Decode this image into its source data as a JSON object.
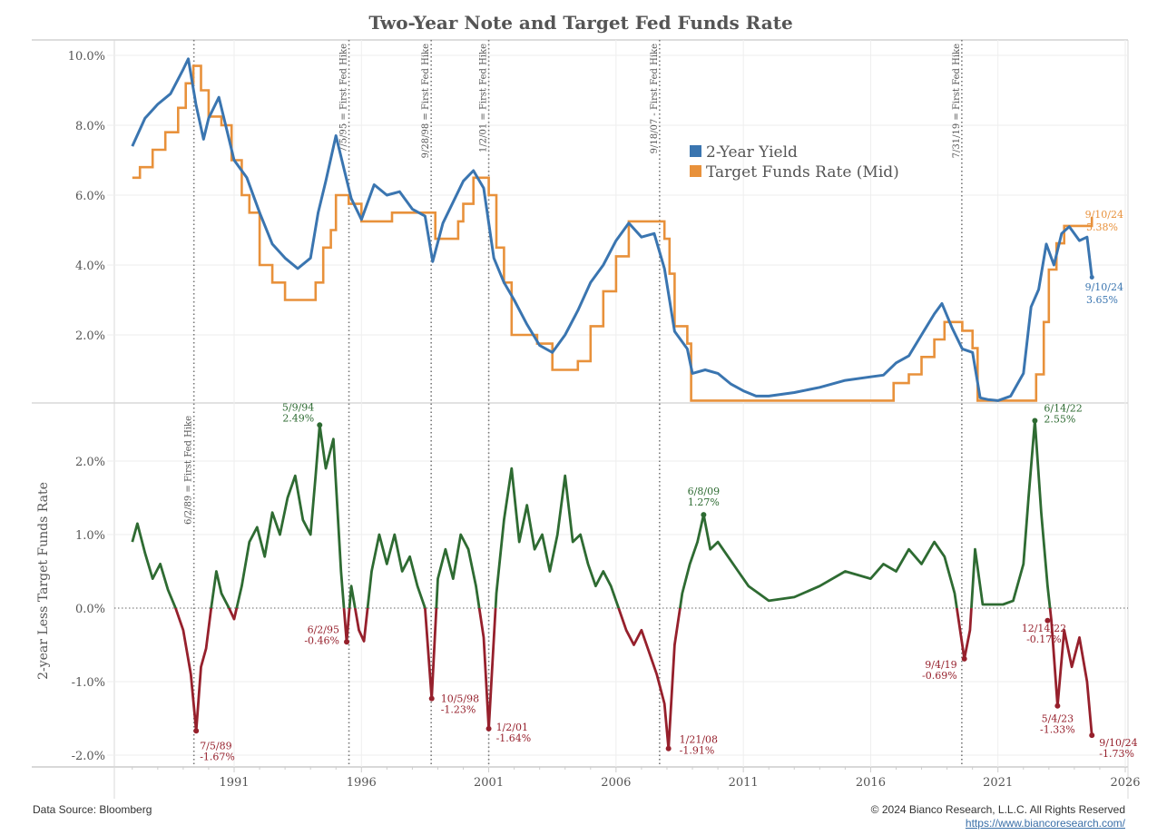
{
  "chart_data": [
    {
      "type": "line",
      "title": "Two-Year Note and Target Fed Funds Rate",
      "xlabel": "",
      "ylabel": "",
      "xlim": [
        1987,
        2026.5
      ],
      "ylim": [
        0,
        10.2
      ],
      "x_ticks": [
        "1991",
        "1996",
        "2001",
        "2006",
        "2011",
        "2016",
        "2021",
        "2026"
      ],
      "y_ticks": [
        "2.0%",
        "4.0%",
        "6.0%",
        "8.0%",
        "10.0%"
      ],
      "legend": {
        "placement": "top-center",
        "entries": [
          "2-Year Yield",
          "Target Funds Rate (Mid)"
        ]
      },
      "colors": {
        "yield": "#3a75b0",
        "target": "#e8913b"
      },
      "series": [
        {
          "name": "2-Year Yield",
          "x": [
            1987.0,
            1987.5,
            1988.0,
            1988.5,
            1989.0,
            1989.2,
            1989.5,
            1989.8,
            1990.0,
            1990.4,
            1990.8,
            1991.0,
            1991.5,
            1992.0,
            1992.5,
            1993.0,
            1993.5,
            1994.0,
            1994.3,
            1994.6,
            1995.0,
            1995.3,
            1995.6,
            1996.0,
            1996.5,
            1997.0,
            1997.5,
            1998.0,
            1998.5,
            1998.8,
            1999.2,
            1999.6,
            2000.0,
            2000.4,
            2000.8,
            2001.2,
            2001.6,
            2002.0,
            2002.5,
            2003.0,
            2003.5,
            2004.0,
            2004.5,
            2005.0,
            2005.5,
            2006.0,
            2006.5,
            2007.0,
            2007.5,
            2007.9,
            2008.3,
            2008.8,
            2009.0,
            2009.5,
            2010.0,
            2010.5,
            2011.0,
            2011.5,
            2012.0,
            2013.0,
            2014.0,
            2015.0,
            2016.0,
            2016.5,
            2017.0,
            2017.5,
            2018.0,
            2018.5,
            2018.8,
            2019.2,
            2019.6,
            2020.0,
            2020.3,
            2020.6,
            2021.0,
            2021.5,
            2022.0,
            2022.3,
            2022.6,
            2022.9,
            2023.2,
            2023.5,
            2023.8,
            2024.2,
            2024.5,
            2024.69
          ],
          "y": [
            7.4,
            8.2,
            8.6,
            8.9,
            9.6,
            9.9,
            8.6,
            7.6,
            8.2,
            8.8,
            7.6,
            7.0,
            6.5,
            5.5,
            4.6,
            4.2,
            3.9,
            4.2,
            5.5,
            6.4,
            7.7,
            6.8,
            5.9,
            5.3,
            6.3,
            6.0,
            6.1,
            5.6,
            5.4,
            4.1,
            5.2,
            5.8,
            6.4,
            6.7,
            6.2,
            4.2,
            3.5,
            3.0,
            2.3,
            1.7,
            1.5,
            2.0,
            2.7,
            3.5,
            4.0,
            4.7,
            5.2,
            4.8,
            4.9,
            3.9,
            2.1,
            1.6,
            0.9,
            1.0,
            0.9,
            0.6,
            0.4,
            0.25,
            0.25,
            0.35,
            0.5,
            0.7,
            0.8,
            0.85,
            1.2,
            1.4,
            2.0,
            2.6,
            2.9,
            2.2,
            1.6,
            1.5,
            0.2,
            0.15,
            0.12,
            0.25,
            0.9,
            2.8,
            3.3,
            4.6,
            4.0,
            4.9,
            5.1,
            4.7,
            4.8,
            3.65
          ]
        },
        {
          "name": "Target Funds Rate (Mid)",
          "x": [
            1987.0,
            1987.3,
            1987.8,
            1988.3,
            1988.8,
            1989.1,
            1989.4,
            1989.7,
            1990.0,
            1990.5,
            1990.9,
            1991.3,
            1991.6,
            1992.0,
            1992.5,
            1993.0,
            1994.0,
            1994.2,
            1994.5,
            1994.8,
            1995.0,
            1995.5,
            1996.0,
            1997.2,
            1998.7,
            1998.9,
            1999.5,
            1999.8,
            2000.0,
            2000.4,
            2001.0,
            2001.3,
            2001.6,
            2001.9,
            2002.9,
            2003.5,
            2004.5,
            2005.0,
            2005.5,
            2006.0,
            2006.5,
            2007.7,
            2007.9,
            2008.1,
            2008.3,
            2008.8,
            2008.95,
            2015.9,
            2016.9,
            2017.5,
            2018.0,
            2018.5,
            2018.9,
            2019.6,
            2020.0,
            2020.2,
            2022.2,
            2022.5,
            2022.8,
            2023.0,
            2023.3,
            2023.6,
            2024.69
          ],
          "y": [
            6.5,
            6.8,
            7.3,
            7.8,
            8.5,
            9.2,
            9.7,
            9.0,
            8.25,
            8.0,
            7.0,
            6.0,
            5.5,
            4.0,
            3.5,
            3.0,
            3.0,
            3.5,
            4.5,
            5.0,
            6.0,
            5.75,
            5.25,
            5.5,
            5.5,
            4.75,
            4.75,
            5.25,
            5.75,
            6.5,
            6.0,
            4.5,
            3.5,
            2.0,
            1.75,
            1.0,
            1.25,
            2.25,
            3.25,
            4.25,
            5.25,
            5.25,
            4.75,
            3.75,
            2.25,
            1.75,
            0.12,
            0.12,
            0.62,
            0.87,
            1.37,
            1.87,
            2.37,
            2.12,
            1.62,
            0.12,
            0.12,
            0.87,
            2.37,
            3.87,
            4.62,
            5.12,
            5.38
          ]
        }
      ],
      "vertical_markers": [
        {
          "x": 1989.42,
          "label": "6/2/89 = First Fed Hike"
        },
        {
          "x": 1995.51,
          "label": "7/5/95 = First Fed Hike"
        },
        {
          "x": 1998.74,
          "label": "9/28/98 = First Fed Hike"
        },
        {
          "x": 2001.0,
          "label": "1/2/01 = First Fed Hike"
        },
        {
          "x": 2007.71,
          "label": "9/18/07 - First Fed Hike"
        },
        {
          "x": 2019.58,
          "label": "7/31/19 = First Fed Hike"
        }
      ],
      "annotations": [
        {
          "x": 2024.69,
          "y": 5.38,
          "date": "9/10/24",
          "value": "5.38%",
          "series": "target"
        },
        {
          "x": 2024.69,
          "y": 3.65,
          "date": "9/10/24",
          "value": "3.65%",
          "series": "yield"
        }
      ]
    },
    {
      "type": "line",
      "title": "",
      "xlabel": "",
      "ylabel": "2-year Less Target Funds Rate",
      "xlim": [
        1987,
        2026.5
      ],
      "ylim": [
        -2.2,
        2.8
      ],
      "x_ticks": [
        "1991",
        "1996",
        "2001",
        "2006",
        "2011",
        "2016",
        "2021",
        "2026"
      ],
      "y_ticks": [
        "-2.0%",
        "-1.0%",
        "0.0%",
        "1.0%",
        "2.0%"
      ],
      "colors": {
        "positive": "#2e6b32",
        "negative": "#96202c"
      },
      "series": [
        {
          "name": "2-year Less Target Funds Rate",
          "x": [
            1987.0,
            1987.2,
            1987.5,
            1987.8,
            1988.1,
            1988.4,
            1988.7,
            1989.0,
            1989.3,
            1989.51,
            1989.7,
            1989.9,
            1990.1,
            1990.3,
            1990.5,
            1990.8,
            1991.0,
            1991.3,
            1991.6,
            1991.9,
            1992.2,
            1992.5,
            1992.8,
            1993.1,
            1993.4,
            1993.7,
            1994.0,
            1994.2,
            1994.36,
            1994.6,
            1994.9,
            1995.2,
            1995.42,
            1995.6,
            1995.9,
            1996.1,
            1996.4,
            1996.7,
            1997.0,
            1997.3,
            1997.6,
            1997.9,
            1998.2,
            1998.5,
            1998.76,
            1999.0,
            1999.3,
            1999.6,
            1999.9,
            2000.2,
            2000.5,
            2000.8,
            2001.0,
            2001.3,
            2001.6,
            2001.9,
            2002.2,
            2002.5,
            2002.8,
            2003.1,
            2003.4,
            2003.7,
            2004.0,
            2004.3,
            2004.6,
            2004.9,
            2005.2,
            2005.5,
            2005.8,
            2006.1,
            2006.4,
            2006.7,
            2007.0,
            2007.3,
            2007.6,
            2007.9,
            2008.06,
            2008.3,
            2008.6,
            2008.9,
            2009.2,
            2009.44,
            2009.7,
            2010.0,
            2010.4,
            2010.8,
            2011.2,
            2011.6,
            2012.0,
            2013.0,
            2014.0,
            2015.0,
            2016.0,
            2016.5,
            2017.0,
            2017.5,
            2018.0,
            2018.5,
            2018.9,
            2019.3,
            2019.68,
            2019.9,
            2020.1,
            2020.4,
            2020.8,
            2021.2,
            2021.6,
            2022.0,
            2022.2,
            2022.45,
            2022.7,
            2022.95,
            2023.1,
            2023.34,
            2023.6,
            2023.9,
            2024.2,
            2024.5,
            2024.69
          ],
          "y": [
            0.9,
            1.15,
            0.75,
            0.4,
            0.6,
            0.25,
            0.0,
            -0.3,
            -0.9,
            -1.67,
            -0.8,
            -0.55,
            0.0,
            0.5,
            0.2,
            0.0,
            -0.15,
            0.3,
            0.9,
            1.1,
            0.7,
            1.3,
            1.0,
            1.5,
            1.8,
            1.2,
            1.0,
            1.8,
            2.49,
            1.9,
            2.3,
            0.5,
            -0.46,
            0.3,
            -0.3,
            -0.45,
            0.5,
            1.0,
            0.6,
            1.0,
            0.5,
            0.7,
            0.3,
            0.0,
            -1.23,
            0.4,
            0.8,
            0.4,
            1.0,
            0.8,
            0.3,
            -0.4,
            -1.64,
            0.2,
            1.2,
            1.9,
            0.9,
            1.4,
            0.8,
            1.0,
            0.5,
            1.0,
            1.8,
            0.9,
            1.0,
            0.6,
            0.3,
            0.5,
            0.3,
            0.0,
            -0.3,
            -0.5,
            -0.3,
            -0.6,
            -0.9,
            -1.3,
            -1.91,
            -0.5,
            0.2,
            0.6,
            0.9,
            1.27,
            0.8,
            0.9,
            0.7,
            0.5,
            0.3,
            0.2,
            0.1,
            0.15,
            0.3,
            0.5,
            0.4,
            0.6,
            0.5,
            0.8,
            0.6,
            0.9,
            0.7,
            0.2,
            -0.69,
            -0.3,
            0.8,
            0.05,
            0.05,
            0.05,
            0.1,
            0.6,
            1.5,
            2.55,
            1.3,
            0.3,
            -0.17,
            -1.33,
            -0.3,
            -0.8,
            -0.4,
            -1.0,
            -1.73
          ]
        }
      ],
      "reference_line": {
        "y": 0.0,
        "style": "dotted"
      },
      "vertical_markers": [
        {
          "x": 1989.42
        },
        {
          "x": 1995.51
        },
        {
          "x": 1998.74
        },
        {
          "x": 2001.0
        },
        {
          "x": 2007.71
        },
        {
          "x": 2019.58
        }
      ],
      "annotations": [
        {
          "x": 1989.51,
          "y": -1.67,
          "date": "7/5/89",
          "value": "-1.67%",
          "kind": "low"
        },
        {
          "x": 1994.36,
          "y": 2.49,
          "date": "5/9/94",
          "value": "2.49%",
          "kind": "high"
        },
        {
          "x": 1995.42,
          "y": -0.46,
          "date": "6/2/95",
          "value": "-0.46%",
          "kind": "low"
        },
        {
          "x": 1998.76,
          "y": -1.23,
          "date": "10/5/98",
          "value": "-1.23%",
          "kind": "low"
        },
        {
          "x": 2001.0,
          "y": -1.64,
          "date": "1/2/01",
          "value": "-1.64%",
          "kind": "low"
        },
        {
          "x": 2008.06,
          "y": -1.91,
          "date": "1/21/08",
          "value": "-1.91%",
          "kind": "low"
        },
        {
          "x": 2009.44,
          "y": 1.27,
          "date": "6/8/09",
          "value": "1.27%",
          "kind": "high"
        },
        {
          "x": 2019.68,
          "y": -0.69,
          "date": "9/4/19",
          "value": "-0.69%",
          "kind": "low"
        },
        {
          "x": 2022.45,
          "y": 2.55,
          "date": "6/14/22",
          "value": "2.55%",
          "kind": "high"
        },
        {
          "x": 2022.95,
          "y": -0.17,
          "date": "12/14/22",
          "value": "-0.17%",
          "kind": "low"
        },
        {
          "x": 2023.34,
          "y": -1.33,
          "date": "5/4/23",
          "value": "-1.33%",
          "kind": "low"
        },
        {
          "x": 2024.69,
          "y": -1.73,
          "date": "9/10/24",
          "value": "-1.73%",
          "kind": "low"
        }
      ]
    }
  ],
  "footer": {
    "source": "Data Source: Bloomberg",
    "copyright": "© 2024 Bianco Research, L.L.C. All Rights Reserved",
    "url": "https://www.biancoresearch.com/"
  }
}
